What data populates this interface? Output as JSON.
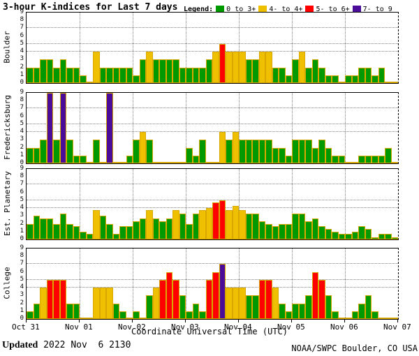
{
  "title": "3-hour K-indices for Last 7 days",
  "legend": {
    "label": "Legend:",
    "items": [
      {
        "label": "0 to 3+",
        "color": "#009900"
      },
      {
        "label": "4- to 4+",
        "color": "#efc000"
      },
      {
        "label": "5- to 6+",
        "color": "#ff0000"
      },
      {
        "label": "7- to 9",
        "color": "#4b0c99"
      }
    ]
  },
  "x_axis": {
    "ticks": [
      "Oct 31",
      "Nov 01",
      "Nov 02",
      "Nov 03",
      "Nov 04",
      "Nov 05",
      "Nov 06",
      "Nov 07"
    ],
    "title": "Coordinate Universal Time (UTC)"
  },
  "footer": {
    "updated_label": "Updated",
    "updated_value": " 2022 Nov  6 2130",
    "source": "NOAA/SWPC Boulder, CO USA"
  },
  "chart_data": {
    "type": "bar",
    "ylim": [
      0,
      9
    ],
    "y_ticks": [
      0,
      1,
      2,
      3,
      4,
      5,
      6,
      7,
      8,
      9
    ],
    "grid_y": [
      4,
      5,
      7
    ],
    "days": 7,
    "bars_per_day": 8,
    "bar_interval_hours": 3,
    "legend_position": "top-right",
    "color_bands": [
      {
        "max": 3.5,
        "color": "#009900"
      },
      {
        "max": 4.5,
        "color": "#efc000"
      },
      {
        "max": 6.5,
        "color": "#ff0000"
      },
      {
        "max": 9.0,
        "color": "#4b0c99"
      }
    ],
    "panels": [
      {
        "station": "Boulder",
        "values": [
          2,
          2,
          3,
          3,
          2,
          3,
          2,
          2,
          1,
          0,
          4,
          2,
          2,
          2,
          2,
          2,
          1,
          3,
          4,
          3,
          3,
          3,
          3,
          2,
          2,
          2,
          2,
          3,
          4,
          5,
          4,
          4,
          4,
          3,
          3,
          4,
          4,
          2,
          2,
          1,
          3,
          4,
          2,
          3,
          2,
          1,
          1,
          0,
          1,
          1,
          2,
          2,
          1,
          2,
          0,
          0
        ]
      },
      {
        "station": "Fredericksburg",
        "values": [
          2,
          2,
          3,
          9,
          3,
          9,
          3,
          1,
          1,
          0,
          3,
          0,
          9,
          0,
          0,
          1,
          3,
          4,
          3,
          0,
          0,
          0,
          0,
          0,
          2,
          1,
          3,
          0,
          0,
          4,
          3,
          4,
          3,
          3,
          3,
          3,
          3,
          2,
          2,
          1,
          3,
          3,
          3,
          2,
          3,
          2,
          1,
          1,
          0,
          0,
          1,
          1,
          1,
          1,
          2,
          0
        ]
      },
      {
        "station": "Est. Planetary",
        "values": [
          2,
          3,
          2.7,
          2.7,
          2,
          3.3,
          2,
          1.7,
          1,
          0.7,
          3.7,
          3,
          2,
          0.7,
          1.7,
          1.7,
          2.3,
          2.7,
          3.7,
          2.7,
          2.3,
          2.7,
          3.7,
          3.3,
          2,
          3.3,
          3.7,
          4,
          4.7,
          5,
          3.7,
          4.3,
          3.7,
          3.3,
          3.3,
          2.3,
          2,
          1.7,
          2,
          2,
          3.3,
          3.3,
          2.3,
          2.7,
          1.7,
          1.3,
          1,
          0.7,
          0.7,
          1,
          1.7,
          1.3,
          0.3,
          0.7,
          0.7,
          0.3
        ]
      },
      {
        "station": "College",
        "values": [
          1,
          2,
          4,
          5,
          5,
          5,
          2,
          2,
          0,
          0,
          4,
          4,
          4,
          2,
          1,
          0,
          1,
          0,
          3,
          4,
          5,
          6,
          5,
          3,
          1,
          2,
          1,
          5,
          6,
          7,
          4,
          4,
          4,
          3,
          3,
          5,
          5,
          4,
          2,
          1,
          2,
          2,
          3,
          6,
          5,
          3,
          1,
          0,
          0,
          1,
          2,
          3,
          1,
          0,
          0,
          0
        ]
      }
    ]
  }
}
